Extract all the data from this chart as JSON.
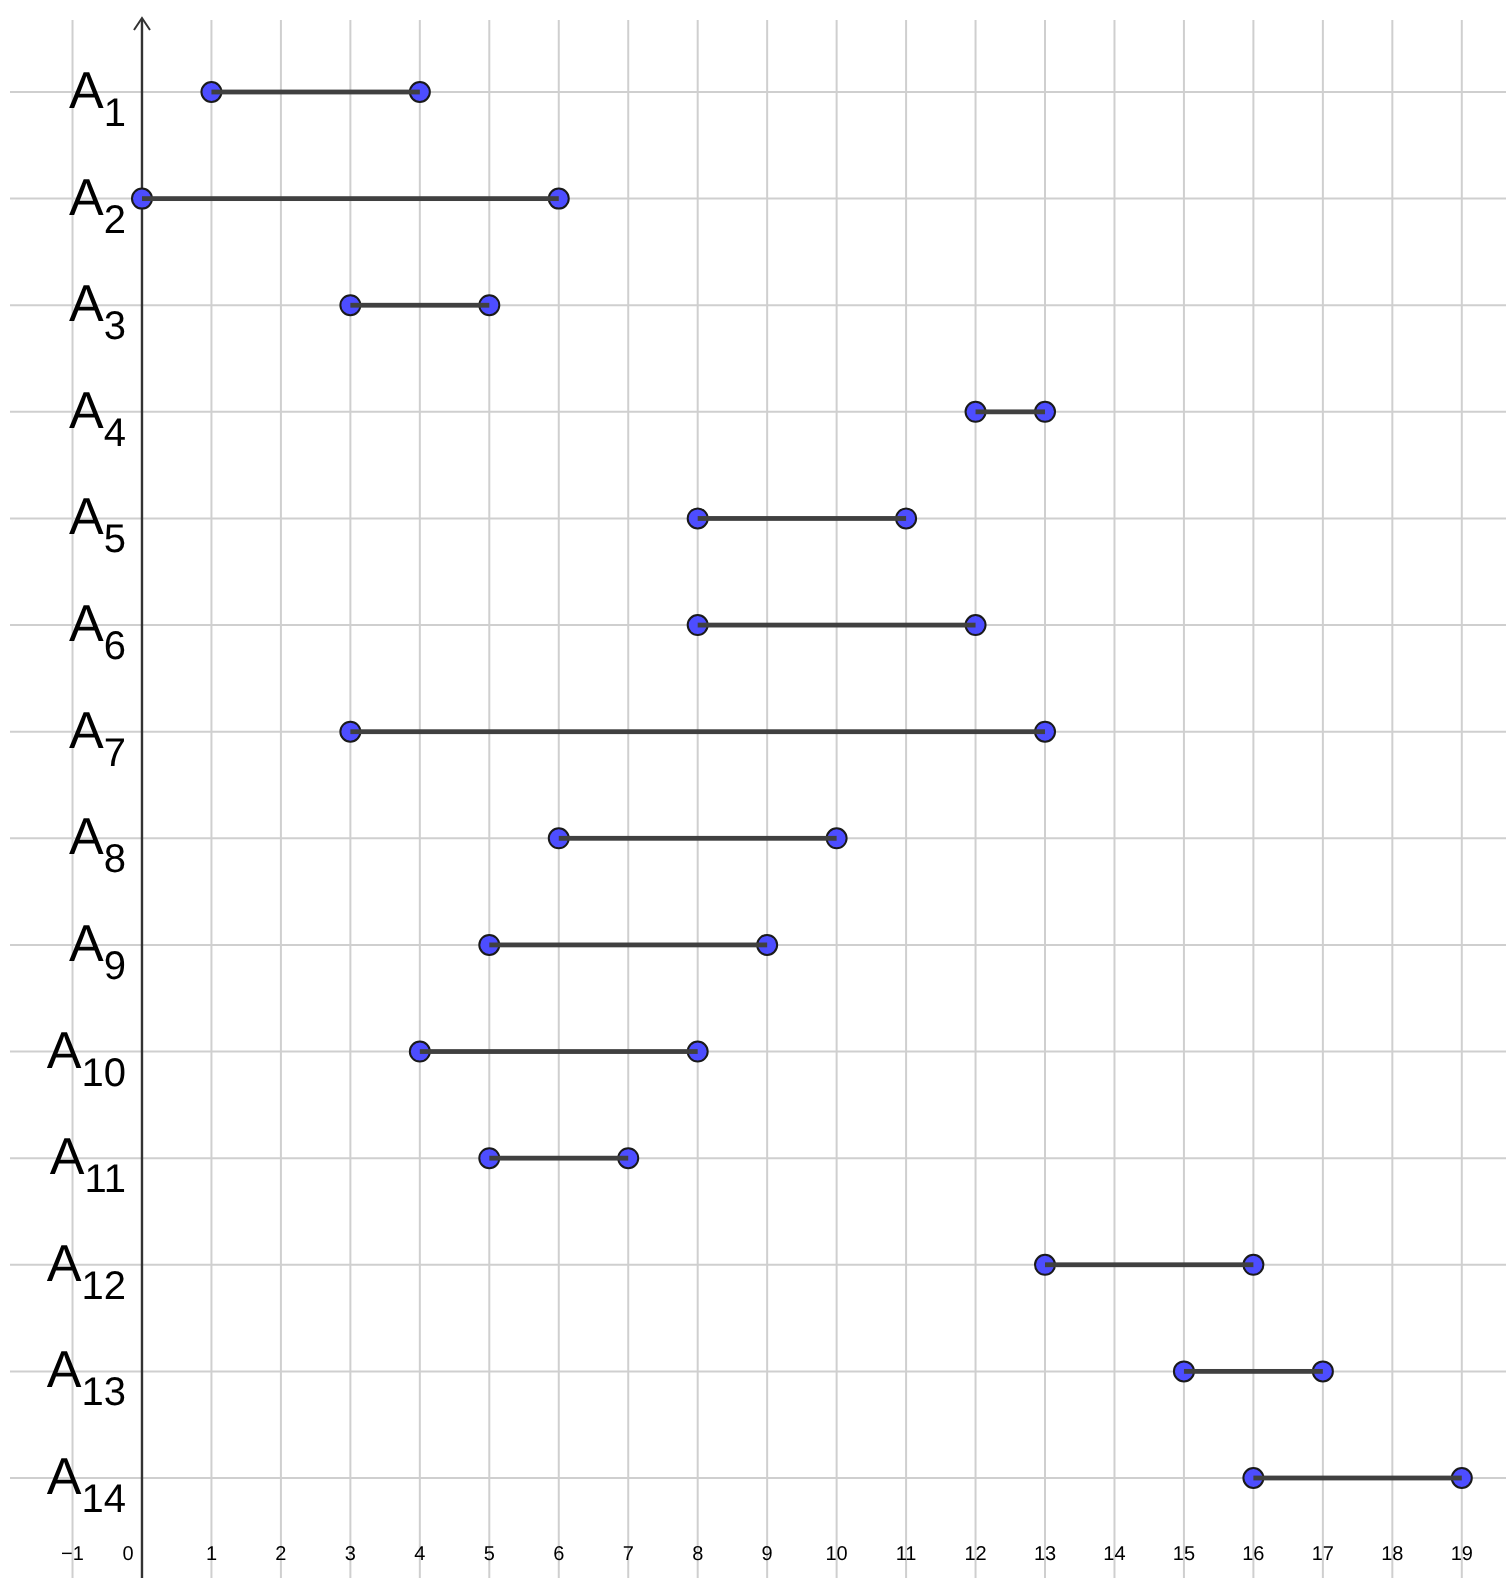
{
  "chart_data": {
    "type": "bar",
    "orientation": "horizontal",
    "categories": [
      "A$_{1}$",
      "A$_{2}$",
      "A$_{3}$",
      "A$_{4}$",
      "A$_{5}$",
      "A$_{6}$",
      "A$_{7}$",
      "A$_{8}$",
      "A$_{9}$",
      "A$_{10}$",
      "A$_{11}$",
      "A$_{12}$",
      "A$_{13}$",
      "A$_{14}$"
    ],
    "series": [
      {
        "type": "scatter",
        "color": "#4d4dff",
        "values": [
          1,
          0,
          3,
          12,
          8,
          8,
          3,
          6,
          5,
          4,
          5,
          13,
          15,
          16
        ]
      },
      {
        "type": "scatter",
        "color": "#4d4dff",
        "values": [
          4,
          6,
          5,
          13,
          11,
          12,
          13,
          10,
          9,
          8,
          7,
          16,
          17,
          19
        ]
      },
      {
        "color": "#404040",
        "base": [
          1,
          0,
          3,
          12,
          8,
          8,
          3,
          6,
          5,
          4,
          5,
          13,
          15,
          16
        ],
        "values": [
          3,
          6,
          2,
          1,
          3,
          4,
          10,
          4,
          4,
          4,
          2,
          3,
          2,
          3
        ]
      }
    ],
    "marker": "circle",
    "xlim": [
      -1.9,
      19.55
    ],
    "xticks": [
      {
        "value": -1,
        "label": "−1"
      },
      0,
      1,
      2,
      3,
      4,
      5,
      6,
      7,
      8,
      9,
      10,
      11,
      12,
      13,
      14,
      15,
      16,
      17,
      18,
      19
    ],
    "grid": true
  }
}
